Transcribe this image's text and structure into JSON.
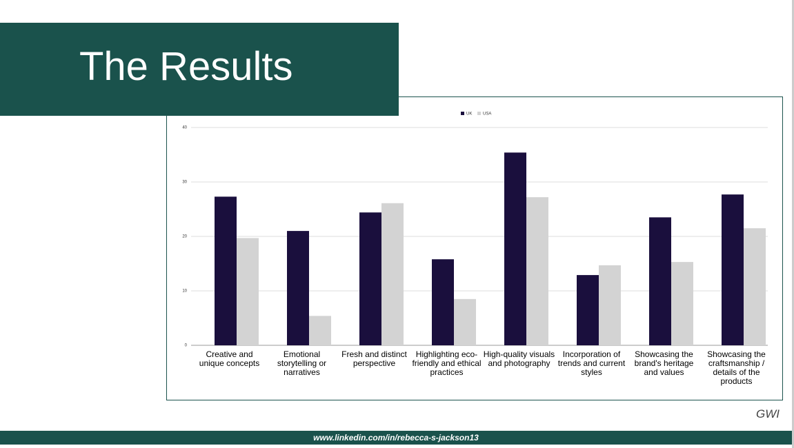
{
  "header": {
    "title": "The Results"
  },
  "source": "GWI",
  "footer": "www.linkedin.com/in/rebecca-s-jackson13",
  "chart_data": {
    "type": "bar",
    "categories": [
      "Creative and unique concepts",
      "Emotional storytelling or narratives",
      "Fresh and distinct perspective",
      "Highlighting eco-friendly and ethical practices",
      "High-quality visuals and photography",
      "Incorporation of trends and current styles",
      "Showcasing the brand's heritage and values",
      "Showcasing the craftsmanship / details of the products"
    ],
    "series": [
      {
        "name": "UK",
        "color": "#1a0f3d",
        "values": [
          27.3,
          21.0,
          24.4,
          15.8,
          35.4,
          12.9,
          23.5,
          27.7
        ]
      },
      {
        "name": "USA",
        "color": "#d3d3d3",
        "values": [
          19.7,
          5.4,
          26.1,
          8.5,
          27.2,
          14.7,
          15.3,
          21.5
        ]
      }
    ],
    "ylim": [
      0,
      40
    ],
    "yticks": [
      0,
      10,
      20,
      30,
      40
    ],
    "grid": true,
    "legend": "top"
  }
}
